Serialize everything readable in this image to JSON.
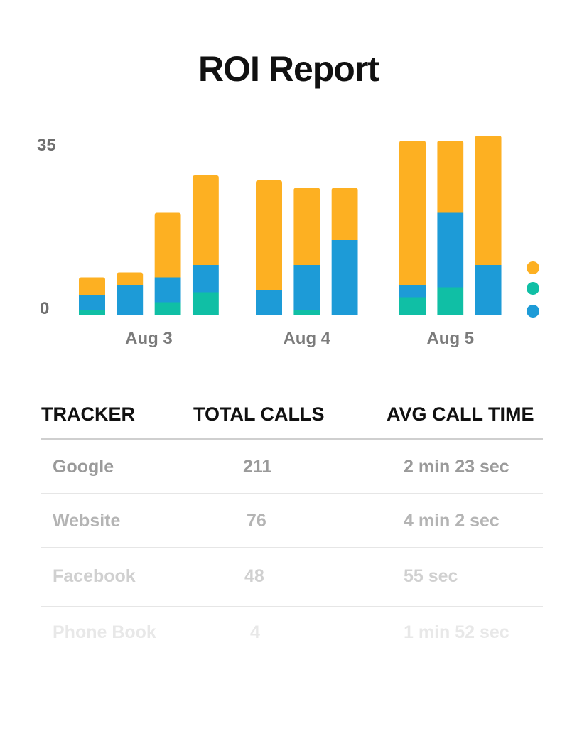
{
  "title": "ROI Report",
  "colors": {
    "orange": "#fdb022",
    "blue": "#1d9bd7",
    "teal": "#10bfa5"
  },
  "chart_data": {
    "type": "bar",
    "stacked": true,
    "groups": [
      {
        "label": "Aug 3",
        "bars": [
          {
            "teal": 1,
            "blue": 3,
            "orange": 3.5
          },
          {
            "teal": 0,
            "blue": 6,
            "orange": 2.5
          },
          {
            "teal": 2.5,
            "blue": 5,
            "orange": 13
          },
          {
            "teal": 4.5,
            "blue": 5.5,
            "orange": 18
          }
        ]
      },
      {
        "label": "Aug 4",
        "bars": [
          {
            "teal": 0,
            "blue": 5,
            "orange": 22
          },
          {
            "teal": 1,
            "blue": 9,
            "orange": 15.5
          },
          {
            "teal": 0,
            "blue": 15,
            "orange": 10.5
          }
        ]
      },
      {
        "label": "Aug 5",
        "bars": [
          {
            "teal": 3.5,
            "blue": 2.5,
            "orange": 29
          },
          {
            "teal": 5.5,
            "blue": 15,
            "orange": 14.5
          },
          {
            "teal": 0,
            "blue": 10,
            "orange": 26
          }
        ]
      }
    ],
    "y_ticks": [
      "0",
      "35"
    ],
    "ylim": [
      0,
      35
    ],
    "legend_placement": "right"
  },
  "table": {
    "headers": [
      "TRACKER",
      "TOTAL CALLS",
      "AVG CALL TIME"
    ],
    "rows": [
      {
        "tracker": "Google",
        "calls": "211",
        "time": "2 min 23 sec"
      },
      {
        "tracker": "Website",
        "calls": "76",
        "time": "4 min 2 sec"
      },
      {
        "tracker": "Facebook",
        "calls": "48",
        "time": "55 sec"
      },
      {
        "tracker": "Phone Book",
        "calls": "4",
        "time": "1 min 52 sec"
      }
    ]
  }
}
